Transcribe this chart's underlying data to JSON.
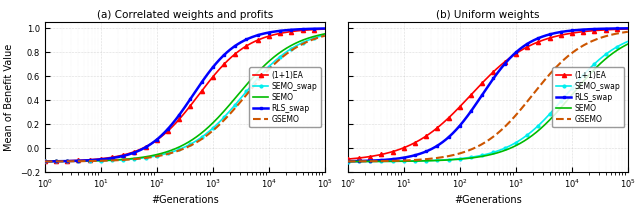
{
  "subplot_a": {
    "title": "(a) Correlated weights and profits",
    "lines": [
      {
        "label": "(1+1)EA",
        "color": "#ff0000",
        "linestyle": "-",
        "marker": "^",
        "markevery": 80,
        "markersize": 3,
        "lw": 1.2,
        "inflection": 2.75,
        "steepness": 2.2,
        "ymax": 1.0,
        "ymin": -0.11
      },
      {
        "label": "SEMO_swap",
        "color": "#00eeee",
        "linestyle": "-",
        "marker": "o",
        "markevery": 80,
        "markersize": 2,
        "lw": 1.2,
        "inflection": 3.55,
        "steepness": 2.0,
        "ymax": 1.0,
        "ymin": -0.11
      },
      {
        "label": "SEMO",
        "color": "#00bb00",
        "linestyle": "-",
        "marker": null,
        "markevery": 80,
        "markersize": 3,
        "lw": 1.2,
        "inflection": 3.45,
        "steepness": 2.0,
        "ymax": 1.0,
        "ymin": -0.11
      },
      {
        "label": "RLS_swap",
        "color": "#0000ff",
        "linestyle": "-",
        "marker": "s",
        "markevery": 80,
        "markersize": 2,
        "lw": 1.8,
        "inflection": 2.65,
        "steepness": 2.5,
        "ymax": 1.0,
        "ymin": -0.11
      },
      {
        "label": "GSEMO",
        "color": "#cc5500",
        "linestyle": "--",
        "marker": null,
        "markevery": null,
        "markersize": 0,
        "lw": 1.5,
        "inflection": 3.6,
        "steepness": 2.0,
        "ymax": 1.0,
        "ymin": -0.11
      }
    ]
  },
  "subplot_b": {
    "title": "(b) Uniform weights",
    "lines": [
      {
        "label": "(1+1)EA",
        "color": "#ff0000",
        "linestyle": "-",
        "marker": "^",
        "markevery": 80,
        "markersize": 3,
        "lw": 1.2,
        "inflection": 2.2,
        "steepness": 1.8,
        "ymax": 1.0,
        "ymin": -0.11
      },
      {
        "label": "SEMO_swap",
        "color": "#00eeee",
        "linestyle": "-",
        "marker": "o",
        "markevery": 80,
        "markersize": 2,
        "lw": 1.2,
        "inflection": 3.9,
        "steepness": 2.0,
        "ymax": 1.0,
        "ymin": -0.11
      },
      {
        "label": "RLS_swap",
        "color": "#0000ff",
        "linestyle": "-",
        "marker": "s",
        "markevery": 80,
        "markersize": 2,
        "lw": 1.8,
        "inflection": 2.4,
        "steepness": 2.5,
        "ymax": 1.0,
        "ymin": -0.11
      },
      {
        "label": "SEMO",
        "color": "#00bb00",
        "linestyle": "-",
        "marker": null,
        "markevery": 80,
        "markersize": 3,
        "lw": 1.2,
        "inflection": 4.0,
        "steepness": 2.0,
        "ymax": 1.0,
        "ymin": -0.11
      },
      {
        "label": "GSEMO",
        "color": "#cc5500",
        "linestyle": "--",
        "marker": null,
        "markevery": null,
        "markersize": 0,
        "lw": 1.5,
        "inflection": 3.3,
        "steepness": 2.1,
        "ymax": 1.0,
        "ymin": -0.11
      }
    ]
  },
  "xlim": [
    1.0,
    100000.0
  ],
  "ylim": [
    -0.2,
    1.05
  ],
  "xlabel": "#Generations",
  "ylabel": "Mean of Benefit Value",
  "yticks": [
    -0.2,
    0.0,
    0.2,
    0.4,
    0.6,
    0.8,
    1.0
  ],
  "bg_color": "#ffffff"
}
